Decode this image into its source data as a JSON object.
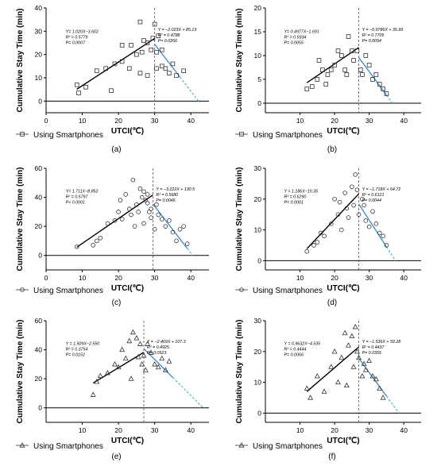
{
  "chart_data": [
    {
      "type": "scatter",
      "panel_label": "(a)",
      "marker": "square",
      "xlim": [
        0,
        45
      ],
      "ylim": [
        -5,
        40
      ],
      "xticks": [
        "0",
        "10",
        "20",
        "30",
        "40"
      ],
      "yticks": [
        "0",
        "10",
        "20",
        "30",
        "40"
      ],
      "x_tick_values": [
        0,
        10,
        20,
        30,
        40
      ],
      "y_tick_values": [
        0,
        10,
        20,
        30,
        40
      ],
      "xlabel": "UTCI(℃)",
      "ylabel": "Cumulative Stay Time (min)",
      "legend": "Using Smartphones",
      "threshold_x": 30,
      "points": [
        [
          8.5,
          7
        ],
        [
          9,
          3.5
        ],
        [
          11,
          6
        ],
        [
          14,
          13
        ],
        [
          16.5,
          14
        ],
        [
          18,
          4.5
        ],
        [
          19,
          16
        ],
        [
          21,
          24
        ],
        [
          21,
          17
        ],
        [
          23,
          14
        ],
        [
          23.5,
          24
        ],
        [
          25,
          20
        ],
        [
          26,
          34
        ],
        [
          26,
          12
        ],
        [
          26.5,
          21
        ],
        [
          27,
          26
        ],
        [
          28,
          25
        ],
        [
          28,
          11
        ],
        [
          29,
          22
        ],
        [
          29.5,
          27
        ],
        [
          30,
          33
        ],
        [
          30.5,
          21
        ],
        [
          30.5,
          14
        ],
        [
          31,
          28
        ],
        [
          32,
          22
        ],
        [
          32,
          15
        ],
        [
          33,
          14
        ],
        [
          34,
          12
        ],
        [
          35,
          16
        ],
        [
          36,
          11
        ],
        [
          38,
          13
        ]
      ],
      "fit_left": {
        "x": [
          8.5,
          30
        ],
        "y": [
          5.1,
          26.9
        ],
        "equation": "Y= 1.020X−3.602",
        "r2": "R² = 0.5779",
        "p": "P= 0.0007"
      },
      "fit_right": {
        "x": [
          30,
          37
        ],
        "y": [
          24.4,
          10.3
        ],
        "x_ext": [
          37,
          42.1
        ],
        "y_ext": [
          10.3,
          0
        ],
        "equation": "Y = −2.023X + 85.13",
        "r2": "R² = 0.4788",
        "p": "P= 0.0266"
      }
    },
    {
      "type": "scatter",
      "panel_label": "(b)",
      "marker": "square",
      "xlim": [
        0,
        45
      ],
      "ylim": [
        -2,
        20
      ],
      "xticks": [
        "10",
        "20",
        "30",
        "40"
      ],
      "yticks": [
        "0",
        "5",
        "10",
        "15",
        "20"
      ],
      "x_tick_values": [
        10,
        20,
        30,
        40
      ],
      "y_tick_values": [
        0,
        5,
        10,
        15,
        20
      ],
      "xlabel": "UTCI(℃)",
      "ylabel": "Cumulative Stay Time (min)",
      "legend": "Using Smartphones",
      "threshold_x": 27,
      "points": [
        [
          12,
          3
        ],
        [
          13.5,
          3.5
        ],
        [
          15,
          5
        ],
        [
          15.5,
          9
        ],
        [
          16.5,
          7
        ],
        [
          17.5,
          4
        ],
        [
          18,
          6
        ],
        [
          19,
          7
        ],
        [
          20,
          8
        ],
        [
          21,
          11
        ],
        [
          22,
          10
        ],
        [
          23,
          7
        ],
        [
          23.5,
          6
        ],
        [
          24,
          14
        ],
        [
          25,
          11
        ],
        [
          25.5,
          9
        ],
        [
          26.5,
          11
        ],
        [
          27.5,
          7
        ],
        [
          28,
          6
        ],
        [
          29,
          10
        ],
        [
          30,
          8
        ],
        [
          31,
          5
        ],
        [
          32,
          6
        ],
        [
          33,
          4
        ],
        [
          34,
          3
        ],
        [
          35,
          2
        ]
      ],
      "fit_left": {
        "x": [
          12,
          27
        ],
        "y": [
          4.3,
          11.7
        ],
        "equation": "Y= 0.4977X−1.691",
        "r2": "R² = 0.5934",
        "p": "P= 0.0055"
      },
      "fit_right": {
        "x": [
          27,
          35
        ],
        "y": [
          9.6,
          1.7
        ],
        "x_ext": [
          35,
          36.8
        ],
        "y_ext": [
          1.7,
          0
        ],
        "equation": "Y = −0.9786X + 35.99",
        "r2": "R² = 0.7705",
        "p": "P= 0.0094"
      }
    },
    {
      "type": "scatter",
      "panel_label": "(c)",
      "marker": "circle",
      "xlim": [
        0,
        45
      ],
      "ylim": [
        -10,
        60
      ],
      "xticks": [
        "0",
        "10",
        "20",
        "30",
        "40"
      ],
      "yticks": [
        "0",
        "20",
        "40",
        "60"
      ],
      "x_tick_values": [
        0,
        10,
        20,
        30,
        40
      ],
      "y_tick_values": [
        0,
        20,
        40,
        60
      ],
      "xlabel": "UTCI(℃)",
      "ylabel": "Cumulative Stay Time (min)",
      "legend": "Using Smartphones",
      "threshold_x": 29.5,
      "points": [
        [
          8.5,
          6
        ],
        [
          13,
          7
        ],
        [
          14,
          10
        ],
        [
          15,
          12
        ],
        [
          17,
          22
        ],
        [
          19,
          24
        ],
        [
          20,
          30
        ],
        [
          20.5,
          38
        ],
        [
          21,
          25
        ],
        [
          22,
          42
        ],
        [
          23,
          32
        ],
        [
          23.5,
          28
        ],
        [
          24,
          52
        ],
        [
          24.5,
          20
        ],
        [
          25,
          35
        ],
        [
          25.5,
          30
        ],
        [
          26,
          46
        ],
        [
          26.5,
          40
        ],
        [
          27,
          44
        ],
        [
          27,
          22
        ],
        [
          27.5,
          38
        ],
        [
          28,
          42
        ],
        [
          28,
          36
        ],
        [
          28.5,
          30
        ],
        [
          29,
          32
        ],
        [
          29,
          26
        ],
        [
          30,
          18
        ],
        [
          30.5,
          35
        ],
        [
          31,
          28
        ],
        [
          32,
          25
        ],
        [
          33,
          20
        ],
        [
          34,
          24
        ],
        [
          35,
          16
        ],
        [
          36,
          10
        ],
        [
          37,
          18
        ],
        [
          38,
          20
        ],
        [
          39,
          8
        ]
      ],
      "fit_left": {
        "x": [
          8.5,
          29.5
        ],
        "y": [
          5.7,
          41.6
        ],
        "equation": "Y= 1.711X−8.852",
        "r2": "R² = 0.5797",
        "p": "P< 0.0001"
      },
      "fit_right": {
        "x": [
          29.5,
          39
        ],
        "y": [
          35.5,
          4.8
        ],
        "x_ext": [
          39,
          40.5
        ],
        "y_ext": [
          4.8,
          0
        ],
        "equation": "Y = −3.222X + 130.5",
        "r2": "R² = 0.5680",
        "p": "P= 0.0046"
      }
    },
    {
      "type": "scatter",
      "panel_label": "(d)",
      "marker": "circle",
      "xlim": [
        0,
        45
      ],
      "ylim": [
        -3,
        30
      ],
      "xticks": [
        "10",
        "20",
        "30",
        "40"
      ],
      "yticks": [
        "0",
        "10",
        "20",
        "30"
      ],
      "x_tick_values": [
        10,
        20,
        30,
        40
      ],
      "y_tick_values": [
        0,
        10,
        20,
        30
      ],
      "xlabel": "UTCI(℃)",
      "ylabel": "Cumulative Stay Time (min)",
      "legend": "Using Smartphones",
      "threshold_x": 27,
      "points": [
        [
          12,
          3
        ],
        [
          14,
          5
        ],
        [
          15,
          6
        ],
        [
          16,
          9
        ],
        [
          17,
          8
        ],
        [
          19,
          12
        ],
        [
          20,
          20
        ],
        [
          21,
          15
        ],
        [
          21.5,
          19
        ],
        [
          22,
          10
        ],
        [
          23,
          22
        ],
        [
          23.5,
          17
        ],
        [
          24,
          14
        ],
        [
          25,
          24
        ],
        [
          25.5,
          18
        ],
        [
          26,
          28
        ],
        [
          26.5,
          23
        ],
        [
          27,
          15
        ],
        [
          28,
          20
        ],
        [
          28.5,
          18
        ],
        [
          29,
          13
        ],
        [
          30,
          11
        ],
        [
          31,
          16
        ],
        [
          32,
          12
        ],
        [
          33,
          9
        ],
        [
          34,
          8
        ],
        [
          35,
          5
        ]
      ],
      "fit_left": {
        "x": [
          12,
          27
        ],
        "y": [
          3.9,
          21.7
        ],
        "equation": "Y = 1.186X−10.35",
        "r2": "R² = 0.6290",
        "p": "P= 0.0001"
      },
      "fit_right": {
        "x": [
          27,
          35
        ],
        "y": [
          18.4,
          4.5
        ],
        "x_ext": [
          35,
          37.6
        ],
        "y_ext": [
          4.5,
          0
        ],
        "equation": "Y = −1.718X + 64.72",
        "r2": "R² = 0.6121",
        "p": "P= 0.0044"
      }
    },
    {
      "type": "scatter",
      "panel_label": "(e)",
      "marker": "triangle",
      "xlim": [
        0,
        45
      ],
      "ylim": [
        -10,
        60
      ],
      "xticks": [
        "10",
        "20",
        "30",
        "40"
      ],
      "yticks": [
        "0",
        "20",
        "40",
        "60"
      ],
      "x_tick_values": [
        10,
        20,
        30,
        40
      ],
      "y_tick_values": [
        0,
        20,
        40,
        60
      ],
      "xlabel": "UTCI(℃)",
      "ylabel": "Cumulative Stay Time (min)",
      "legend": "Using Smartphones",
      "threshold_x": 27,
      "points": [
        [
          13,
          9
        ],
        [
          14,
          18
        ],
        [
          15,
          22
        ],
        [
          17,
          24
        ],
        [
          19,
          30
        ],
        [
          20,
          28
        ],
        [
          21,
          40
        ],
        [
          22,
          34
        ],
        [
          23,
          46
        ],
        [
          23.5,
          20
        ],
        [
          24,
          52
        ],
        [
          25,
          48
        ],
        [
          25.5,
          35
        ],
        [
          26,
          44
        ],
        [
          26.5,
          30
        ],
        [
          27,
          36
        ],
        [
          27.5,
          26
        ],
        [
          28,
          44
        ],
        [
          29,
          38
        ],
        [
          30,
          30
        ],
        [
          31,
          28
        ],
        [
          32,
          34
        ],
        [
          33,
          26
        ],
        [
          34,
          32
        ]
      ],
      "fit_left": {
        "x": [
          13,
          27
        ],
        "y": [
          17.1,
          38.2
        ],
        "equation": "Y = 1.509X−2.550",
        "r2": "R² = 0.3754",
        "p": "P= 0.0152"
      },
      "fit_right": {
        "x": [
          27,
          35
        ],
        "y": [
          40.8,
          20.9
        ],
        "x_ext": [
          35,
          43.4
        ],
        "y_ext": [
          20.9,
          0
        ],
        "equation": "Y = −2.469X + 107.3",
        "r2": "R² = 0.4925",
        "p": "P= 0.0523"
      }
    },
    {
      "type": "scatter",
      "panel_label": "(f)",
      "marker": "triangle",
      "xlim": [
        0,
        45
      ],
      "ylim": [
        -3,
        30
      ],
      "xticks": [
        "10",
        "20",
        "30",
        "40"
      ],
      "yticks": [
        "0",
        "10",
        "20",
        "30"
      ],
      "x_tick_values": [
        10,
        20,
        30,
        40
      ],
      "y_tick_values": [
        0,
        10,
        20,
        30
      ],
      "xlabel": "UTCI(℃)",
      "ylabel": "Cumulative Stay Time (min)",
      "legend": "Using Smartphones",
      "threshold_x": 27,
      "points": [
        [
          12,
          8
        ],
        [
          13,
          5
        ],
        [
          15,
          12
        ],
        [
          17,
          7
        ],
        [
          19,
          15
        ],
        [
          20,
          20
        ],
        [
          21,
          10
        ],
        [
          22,
          18
        ],
        [
          23,
          26
        ],
        [
          23.5,
          9
        ],
        [
          24,
          22
        ],
        [
          25,
          25
        ],
        [
          25.5,
          15
        ],
        [
          26,
          28
        ],
        [
          26.5,
          20
        ],
        [
          27,
          18
        ],
        [
          28,
          12
        ],
        [
          28.5,
          16
        ],
        [
          29,
          14
        ],
        [
          30,
          17
        ],
        [
          31,
          12
        ],
        [
          32,
          11
        ],
        [
          33,
          8
        ],
        [
          34,
          5
        ]
      ],
      "fit_left": {
        "x": [
          12,
          27
        ],
        "y": [
          7.0,
          21.5
        ],
        "equation": "Y = 0.9632X−4.535",
        "r2": "R² = 0.4444",
        "p": "P= 0.0066"
      },
      "fit_right": {
        "x": [
          27,
          35
        ],
        "y": [
          17.8,
          5.5
        ],
        "x_ext": [
          35,
          38.6
        ],
        "y_ext": [
          5.5,
          0
        ],
        "equation": "Y = −1.536X + 59.28",
        "r2": "R² = 0.4437",
        "p": "P= 0.0355"
      }
    }
  ]
}
